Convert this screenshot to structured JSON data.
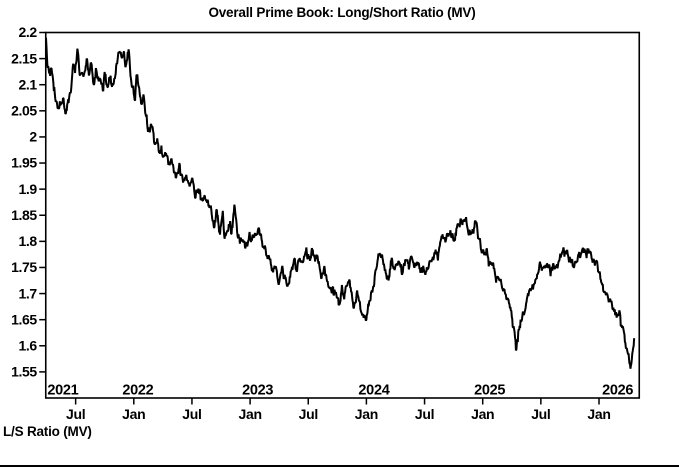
{
  "title": "Overall Prime Book: Long/Short Ratio (MV)",
  "footer_label": "L/S Ratio (MV)",
  "colors": {
    "line": "#000000",
    "axis": "#000000",
    "text": "#000000",
    "background": "#ffffff"
  },
  "chart_data": {
    "type": "line",
    "title": "Overall Prime Book: Long/Short Ratio (MV)",
    "ylabel": "L/S Ratio (MV)",
    "grid": false,
    "legend": false,
    "x_domain": [
      2021.243,
      2026.346
    ],
    "x_end": 2026.302,
    "ylim": [
      1.5,
      2.2
    ],
    "y_ticks": [
      1.55,
      1.6,
      1.65,
      1.7,
      1.75,
      1.8,
      1.85,
      1.9,
      1.95,
      2.0,
      2.05,
      2.1,
      2.15,
      2.2
    ],
    "x_ticks": [
      {
        "t": 2021.5,
        "label": "Jul"
      },
      {
        "t": 2022.0,
        "label": "Jan"
      },
      {
        "t": 2022.5,
        "label": "Jul"
      },
      {
        "t": 2023.0,
        "label": "Jan"
      },
      {
        "t": 2023.5,
        "label": "Jul"
      },
      {
        "t": 2024.0,
        "label": "Jan"
      },
      {
        "t": 2024.5,
        "label": "Jul"
      },
      {
        "t": 2025.0,
        "label": "Jan"
      },
      {
        "t": 2025.5,
        "label": "Jul"
      },
      {
        "t": 2026.0,
        "label": "Jan"
      }
    ],
    "year_labels": [
      {
        "t": 2021.39,
        "label": "2021"
      },
      {
        "t": 2022.035,
        "label": "2022"
      },
      {
        "t": 2023.065,
        "label": "2023"
      },
      {
        "t": 2024.065,
        "label": "2024"
      },
      {
        "t": 2025.06,
        "label": "2025"
      },
      {
        "t": 2026.16,
        "label": "2026"
      }
    ],
    "points_per_year": 252,
    "noise": {
      "seed": 42,
      "sd": 0.0048,
      "persistence": 0.72
    },
    "anchors": [
      [
        2021.245,
        2.19
      ],
      [
        2021.255,
        2.155
      ],
      [
        2021.27,
        2.13
      ],
      [
        2021.285,
        2.145
      ],
      [
        2021.31,
        2.09
      ],
      [
        2021.33,
        2.07
      ],
      [
        2021.355,
        2.057
      ],
      [
        2021.385,
        2.065
      ],
      [
        2021.415,
        2.052
      ],
      [
        2021.44,
        2.075
      ],
      [
        2021.465,
        2.105
      ],
      [
        2021.48,
        2.14
      ],
      [
        2021.495,
        2.125
      ],
      [
        2021.515,
        2.155
      ],
      [
        2021.535,
        2.12
      ],
      [
        2021.555,
        2.135
      ],
      [
        2021.575,
        2.115
      ],
      [
        2021.595,
        2.145
      ],
      [
        2021.615,
        2.125
      ],
      [
        2021.635,
        2.14
      ],
      [
        2021.655,
        2.095
      ],
      [
        2021.675,
        2.125
      ],
      [
        2021.695,
        2.105
      ],
      [
        2021.715,
        2.12
      ],
      [
        2021.735,
        2.095
      ],
      [
        2021.755,
        2.115
      ],
      [
        2021.775,
        2.092
      ],
      [
        2021.8,
        2.11
      ],
      [
        2021.825,
        2.095
      ],
      [
        2021.85,
        2.14
      ],
      [
        2021.875,
        2.16
      ],
      [
        2021.895,
        2.145
      ],
      [
        2021.915,
        2.155
      ],
      [
        2021.935,
        2.13
      ],
      [
        2021.955,
        2.158
      ],
      [
        2021.975,
        2.12
      ],
      [
        2021.995,
        2.09
      ],
      [
        2022.01,
        2.067
      ],
      [
        2022.025,
        2.122
      ],
      [
        2022.045,
        2.085
      ],
      [
        2022.065,
        2.058
      ],
      [
        2022.085,
        2.075
      ],
      [
        2022.105,
        2.04
      ],
      [
        2022.125,
        2.012
      ],
      [
        2022.15,
        2.025
      ],
      [
        2022.175,
        1.995
      ],
      [
        2022.2,
        2.008
      ],
      [
        2022.225,
        1.98
      ],
      [
        2022.25,
        1.97
      ],
      [
        2022.275,
        1.962
      ],
      [
        2022.3,
        1.945
      ],
      [
        2022.33,
        1.952
      ],
      [
        2022.36,
        1.925
      ],
      [
        2022.39,
        1.94
      ],
      [
        2022.42,
        1.918
      ],
      [
        2022.45,
        1.93
      ],
      [
        2022.48,
        1.912
      ],
      [
        2022.505,
        1.925
      ],
      [
        2022.53,
        1.898
      ],
      [
        2022.555,
        1.905
      ],
      [
        2022.58,
        1.885
      ],
      [
        2022.61,
        1.893
      ],
      [
        2022.64,
        1.868
      ],
      [
        2022.665,
        1.856
      ],
      [
        2022.69,
        1.838
      ],
      [
        2022.715,
        1.855
      ],
      [
        2022.74,
        1.812
      ],
      [
        2022.765,
        1.842
      ],
      [
        2022.79,
        1.806
      ],
      [
        2022.815,
        1.825
      ],
      [
        2022.84,
        1.81
      ],
      [
        2022.865,
        1.858
      ],
      [
        2022.89,
        1.82
      ],
      [
        2022.915,
        1.8
      ],
      [
        2022.94,
        1.812
      ],
      [
        2022.965,
        1.795
      ],
      [
        2022.99,
        1.808
      ],
      [
        2023.015,
        1.792
      ],
      [
        2023.04,
        1.815
      ],
      [
        2023.07,
        1.828
      ],
      [
        2023.1,
        1.795
      ],
      [
        2023.13,
        1.785
      ],
      [
        2023.16,
        1.765
      ],
      [
        2023.19,
        1.752
      ],
      [
        2023.22,
        1.742
      ],
      [
        2023.25,
        1.73
      ],
      [
        2023.28,
        1.742
      ],
      [
        2023.31,
        1.718
      ],
      [
        2023.33,
        1.712
      ],
      [
        2023.355,
        1.74
      ],
      [
        2023.38,
        1.762
      ],
      [
        2023.405,
        1.748
      ],
      [
        2023.43,
        1.772
      ],
      [
        2023.455,
        1.76
      ],
      [
        2023.48,
        1.772
      ],
      [
        2023.505,
        1.762
      ],
      [
        2023.53,
        1.783
      ],
      [
        2023.555,
        1.775
      ],
      [
        2023.58,
        1.762
      ],
      [
        2023.61,
        1.742
      ],
      [
        2023.64,
        1.752
      ],
      [
        2023.665,
        1.728
      ],
      [
        2023.69,
        1.705
      ],
      [
        2023.715,
        1.712
      ],
      [
        2023.74,
        1.695
      ],
      [
        2023.765,
        1.682
      ],
      [
        2023.79,
        1.702
      ],
      [
        2023.815,
        1.692
      ],
      [
        2023.84,
        1.712
      ],
      [
        2023.865,
        1.7
      ],
      [
        2023.89,
        1.672
      ],
      [
        2023.915,
        1.702
      ],
      [
        2023.94,
        1.685
      ],
      [
        2023.965,
        1.652
      ],
      [
        2023.99,
        1.648
      ],
      [
        2024.01,
        1.66
      ],
      [
        2024.035,
        1.692
      ],
      [
        2024.06,
        1.715
      ],
      [
        2024.085,
        1.748
      ],
      [
        2024.115,
        1.775
      ],
      [
        2024.14,
        1.758
      ],
      [
        2024.165,
        1.742
      ],
      [
        2024.19,
        1.728
      ],
      [
        2024.215,
        1.752
      ],
      [
        2024.24,
        1.735
      ],
      [
        2024.265,
        1.75
      ],
      [
        2024.29,
        1.762
      ],
      [
        2024.315,
        1.74
      ],
      [
        2024.34,
        1.768
      ],
      [
        2024.365,
        1.738
      ],
      [
        2024.39,
        1.772
      ],
      [
        2024.415,
        1.748
      ],
      [
        2024.44,
        1.76
      ],
      [
        2024.465,
        1.735
      ],
      [
        2024.49,
        1.755
      ],
      [
        2024.515,
        1.738
      ],
      [
        2024.54,
        1.758
      ],
      [
        2024.565,
        1.772
      ],
      [
        2024.59,
        1.788
      ],
      [
        2024.615,
        1.778
      ],
      [
        2024.64,
        1.798
      ],
      [
        2024.665,
        1.792
      ],
      [
        2024.69,
        1.812
      ],
      [
        2024.715,
        1.82
      ],
      [
        2024.74,
        1.805
      ],
      [
        2024.765,
        1.818
      ],
      [
        2024.79,
        1.828
      ],
      [
        2024.815,
        1.84
      ],
      [
        2024.84,
        1.835
      ],
      [
        2024.86,
        1.842
      ],
      [
        2024.88,
        1.812
      ],
      [
        2024.9,
        1.806
      ],
      [
        2024.92,
        1.828
      ],
      [
        2024.94,
        1.836
      ],
      [
        2024.96,
        1.815
      ],
      [
        2024.98,
        1.802
      ],
      [
        2025.0,
        1.788
      ],
      [
        2025.025,
        1.775
      ],
      [
        2025.05,
        1.762
      ],
      [
        2025.075,
        1.755
      ],
      [
        2025.1,
        1.738
      ],
      [
        2025.125,
        1.728
      ],
      [
        2025.15,
        1.722
      ],
      [
        2025.175,
        1.712
      ],
      [
        2025.2,
        1.695
      ],
      [
        2025.225,
        1.682
      ],
      [
        2025.25,
        1.65
      ],
      [
        2025.27,
        1.618
      ],
      [
        2025.29,
        1.592
      ],
      [
        2025.31,
        1.632
      ],
      [
        2025.33,
        1.648
      ],
      [
        2025.355,
        1.668
      ],
      [
        2025.38,
        1.695
      ],
      [
        2025.405,
        1.702
      ],
      [
        2025.43,
        1.715
      ],
      [
        2025.455,
        1.728
      ],
      [
        2025.48,
        1.748
      ],
      [
        2025.505,
        1.755
      ],
      [
        2025.53,
        1.745
      ],
      [
        2025.555,
        1.758
      ],
      [
        2025.58,
        1.748
      ],
      [
        2025.6,
        1.738
      ],
      [
        2025.625,
        1.755
      ],
      [
        2025.65,
        1.762
      ],
      [
        2025.675,
        1.775
      ],
      [
        2025.7,
        1.778
      ],
      [
        2025.725,
        1.768
      ],
      [
        2025.75,
        1.772
      ],
      [
        2025.775,
        1.755
      ],
      [
        2025.8,
        1.762
      ],
      [
        2025.825,
        1.77
      ],
      [
        2025.85,
        1.778
      ],
      [
        2025.875,
        1.785
      ],
      [
        2025.9,
        1.788
      ],
      [
        2025.925,
        1.78
      ],
      [
        2025.95,
        1.768
      ],
      [
        2025.975,
        1.755
      ],
      [
        2026.0,
        1.74
      ],
      [
        2026.025,
        1.712
      ],
      [
        2026.05,
        1.698
      ],
      [
        2026.075,
        1.692
      ],
      [
        2026.1,
        1.682
      ],
      [
        2026.125,
        1.672
      ],
      [
        2026.15,
        1.668
      ],
      [
        2026.175,
        1.66
      ],
      [
        2026.2,
        1.638
      ],
      [
        2026.225,
        1.605
      ],
      [
        2026.25,
        1.578
      ],
      [
        2026.27,
        1.562
      ],
      [
        2026.285,
        1.572
      ],
      [
        2026.302,
        1.606
      ]
    ]
  }
}
